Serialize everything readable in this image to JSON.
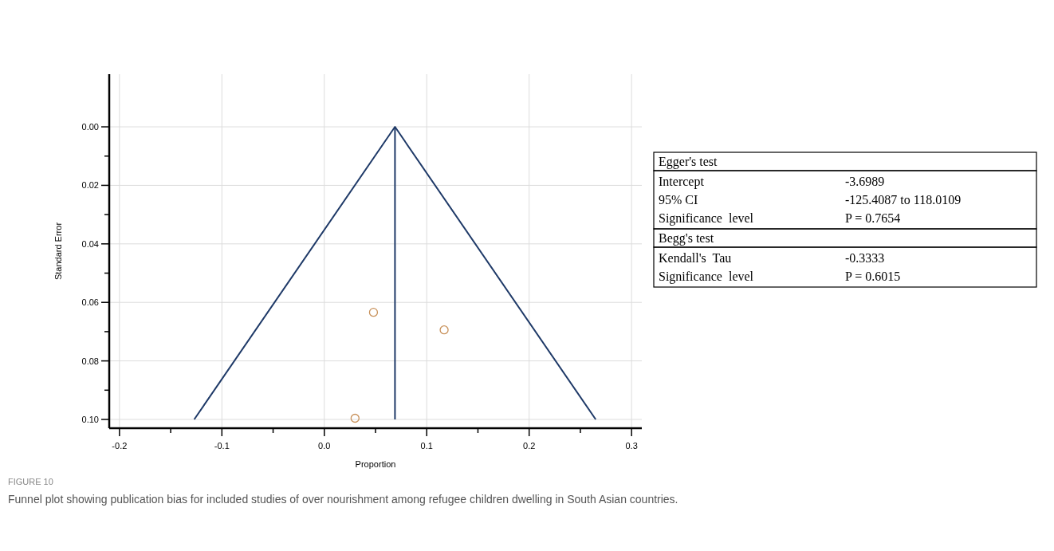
{
  "chart_data": [
    {
      "type": "scatter",
      "xlabel": "Proportion",
      "ylabel": "Standard Error",
      "xlim": [
        -0.21,
        0.31
      ],
      "ylim": [
        0.103,
        -0.018
      ],
      "xticks": [
        {
          "value": -0.2,
          "label": "-0.2"
        },
        {
          "value": -0.15,
          "label": null
        },
        {
          "value": -0.1,
          "label": "-0.1"
        },
        {
          "value": -0.05,
          "label": null
        },
        {
          "value": 0,
          "label": "0.0"
        },
        {
          "value": 0.05,
          "label": null
        },
        {
          "value": 0.1,
          "label": "0.1"
        },
        {
          "value": 0.15,
          "label": null
        },
        {
          "value": 0.2,
          "label": "0.2"
        },
        {
          "value": 0.25,
          "label": null
        },
        {
          "value": 0.3,
          "label": "0.3"
        }
      ],
      "yticks": [
        {
          "value": 0,
          "label": "0.00"
        },
        {
          "value": 0.01,
          "label": null
        },
        {
          "value": 0.02,
          "label": "0.02"
        },
        {
          "value": 0.03,
          "label": null
        },
        {
          "value": 0.04,
          "label": "0.04"
        },
        {
          "value": 0.05,
          "label": null
        },
        {
          "value": 0.06,
          "label": "0.06"
        },
        {
          "value": 0.07,
          "label": null
        },
        {
          "value": 0.08,
          "label": "0.08"
        },
        {
          "value": 0.09,
          "label": null
        },
        {
          "value": 0.1,
          "label": "0.10"
        }
      ],
      "grid": true,
      "series": [
        {
          "type": "line",
          "color": "#1f3a68",
          "x": [
            -0.127,
            0.069,
            0.265
          ],
          "values": [
            0.1,
            0,
            0.1
          ]
        },
        {
          "type": "line",
          "color": "#1f3a68",
          "x": [
            0.069,
            0.069
          ],
          "values": [
            0,
            0.1
          ]
        },
        {
          "type": "scatter",
          "color": "#c8915a",
          "marker": "circle",
          "x": [
            0.048,
            0.117,
            0.03
          ],
          "values": [
            0.0634,
            0.0694,
            0.0996
          ]
        }
      ],
      "annotations": [
        "FIGURE 10",
        "Funnel plot showing publication bias for included studies of over nourishment among refugee children dwelling in South Asian countries."
      ]
    },
    {
      "type": "other",
      "title": "Egger's test",
      "annotations": [
        "Intercept",
        "-3.6989",
        "95% CI",
        "-125.4087 to 118.0109",
        "Significance  level",
        "P = 0.7654"
      ]
    },
    {
      "type": "other",
      "title": "Begg's test",
      "annotations": [
        "Kendall's  Tau",
        "-0.3333",
        "Significance  level",
        "P = 0.6015"
      ]
    }
  ]
}
